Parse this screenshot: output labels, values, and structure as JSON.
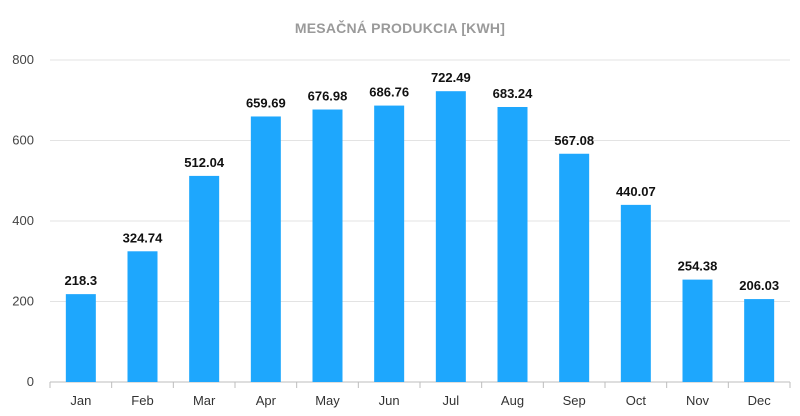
{
  "chart_data": {
    "type": "bar",
    "title": "MESAČNÁ PRODUKCIA [KWH]",
    "categories": [
      "Jan",
      "Feb",
      "Mar",
      "Apr",
      "May",
      "Jun",
      "Jul",
      "Aug",
      "Sep",
      "Oct",
      "Nov",
      "Dec"
    ],
    "values": [
      218.3,
      324.74,
      512.04,
      659.69,
      676.98,
      686.76,
      722.49,
      683.24,
      567.08,
      440.07,
      254.38,
      206.03
    ],
    "value_labels": [
      "218.3",
      "324.74",
      "512.04",
      "659.69",
      "676.98",
      "686.76",
      "722.49",
      "683.24",
      "567.08",
      "440.07",
      "254.38",
      "206.03"
    ],
    "xlabel": "",
    "ylabel": "",
    "ylim": [
      0,
      800
    ],
    "yticks": [
      0,
      200,
      400,
      600,
      800
    ],
    "grid": true,
    "legend": "none",
    "bar_color": "#1ea7fd",
    "grid_color": "#e3e3e3"
  }
}
